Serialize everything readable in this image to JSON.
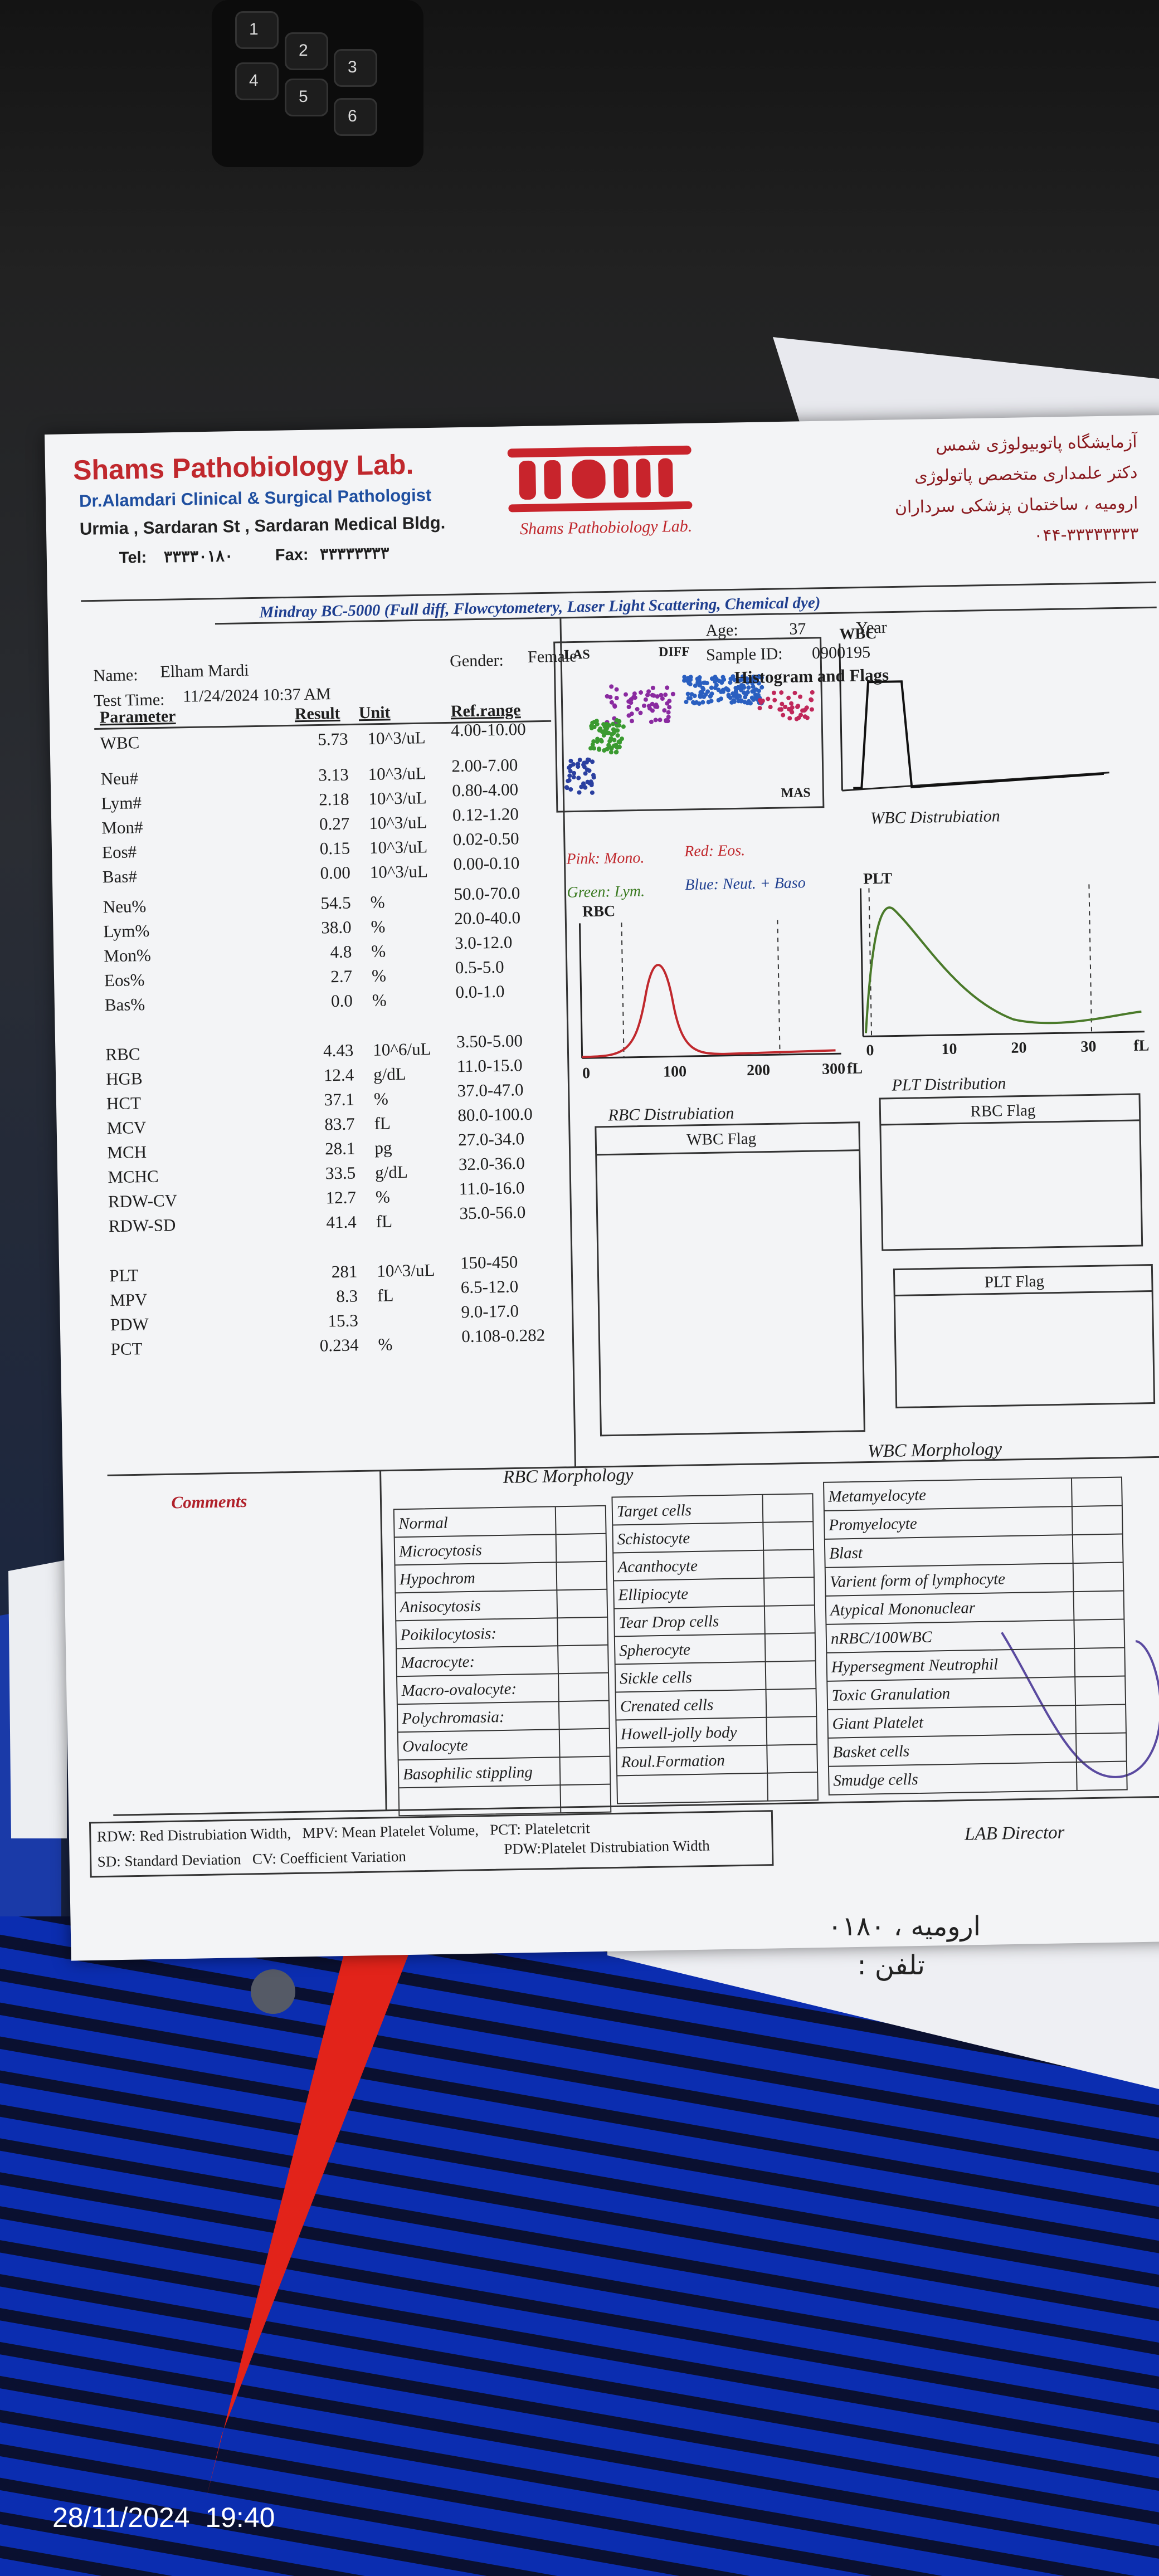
{
  "photo": {
    "keypad": [
      "1",
      "2",
      "3",
      "4",
      "5",
      "6"
    ],
    "timestamp": "28/11/2024  19:40"
  },
  "header": {
    "lab_name": "Shams Pathobiology Lab.",
    "pathologist": "Dr.Alamdari Clinical & Surgical Pathologist",
    "address": "Urmia , Sardaran St , Sardaran Medical Bldg.",
    "tel_label": "Tel:",
    "tel": "۳۳۳۳۰۱۸۰",
    "fax_label": "Fax:",
    "fax": "۳۳۳۳۳۳۳۳",
    "logo_caption": "Shams Pathobiology Lab.",
    "persian_lines": [
      "آزمایشگاه پاتوبیولوژی شمس",
      "دکتر علمداری متخصص پاتولوژی",
      "ارومیه ، ساختمان پزشکی سرداران",
      "۰۴۴-۳۳۳۳۳۳۳۳"
    ]
  },
  "instrument": "Mindray BC-5000 (Full diff, Flowcytometery, Laser Light Scattering, Chemical dye)",
  "patient": {
    "name_label": "Name:",
    "name": "Elham Mardi",
    "gender_label": "Gender:",
    "gender": "Female",
    "age_label": "Age:",
    "age": "37",
    "age_unit": "Year",
    "sample_label": "Sample ID:",
    "sample_id": "0900195",
    "time_label": "Test Time:",
    "test_time": "11/24/2024 10:37 AM"
  },
  "table": {
    "columns": [
      "Parameter",
      "Result",
      "Unit",
      "Ref.range"
    ],
    "rows": [
      {
        "parameter": "WBC",
        "result": "5.73",
        "unit": "10^3/uL",
        "ref_range": "4.00-10.00"
      },
      {
        "parameter": "Neu#",
        "result": "3.13",
        "unit": "10^3/uL",
        "ref_range": "2.00-7.00"
      },
      {
        "parameter": "Lym#",
        "result": "2.18",
        "unit": "10^3/uL",
        "ref_range": "0.80-4.00"
      },
      {
        "parameter": "Mon#",
        "result": "0.27",
        "unit": "10^3/uL",
        "ref_range": "0.12-1.20"
      },
      {
        "parameter": "Eos#",
        "result": "0.15",
        "unit": "10^3/uL",
        "ref_range": "0.02-0.50"
      },
      {
        "parameter": "Bas#",
        "result": "0.00",
        "unit": "10^3/uL",
        "ref_range": "0.00-0.10"
      },
      {
        "parameter": "Neu%",
        "result": "54.5",
        "unit": "%",
        "ref_range": "50.0-70.0"
      },
      {
        "parameter": "Lym%",
        "result": "38.0",
        "unit": "%",
        "ref_range": "20.0-40.0"
      },
      {
        "parameter": "Mon%",
        "result": "4.8",
        "unit": "%",
        "ref_range": "3.0-12.0"
      },
      {
        "parameter": "Eos%",
        "result": "2.7",
        "unit": "%",
        "ref_range": "0.5-5.0"
      },
      {
        "parameter": "Bas%",
        "result": "0.0",
        "unit": "%",
        "ref_range": "0.0-1.0"
      },
      {
        "parameter": "RBC",
        "result": "4.43",
        "unit": "10^6/uL",
        "ref_range": "3.50-5.00"
      },
      {
        "parameter": "HGB",
        "result": "12.4",
        "unit": "g/dL",
        "ref_range": "11.0-15.0"
      },
      {
        "parameter": "HCT",
        "result": "37.1",
        "unit": "%",
        "ref_range": "37.0-47.0"
      },
      {
        "parameter": "MCV",
        "result": "83.7",
        "unit": "fL",
        "ref_range": "80.0-100.0"
      },
      {
        "parameter": "MCH",
        "result": "28.1",
        "unit": "pg",
        "ref_range": "27.0-34.0"
      },
      {
        "parameter": "MCHC",
        "result": "33.5",
        "unit": "g/dL",
        "ref_range": "32.0-36.0"
      },
      {
        "parameter": "RDW-CV",
        "result": "12.7",
        "unit": "%",
        "ref_range": "11.0-16.0"
      },
      {
        "parameter": "RDW-SD",
        "result": "41.4",
        "unit": "fL",
        "ref_range": "35.0-56.0"
      },
      {
        "parameter": "PLT",
        "result": "281",
        "unit": "10^3/uL",
        "ref_range": "150-450"
      },
      {
        "parameter": "MPV",
        "result": "8.3",
        "unit": "fL",
        "ref_range": "6.5-12.0"
      },
      {
        "parameter": "PDW",
        "result": "15.3",
        "ref_range": "9.0-17.0"
      },
      {
        "parameter": "PCT",
        "result": "0.234",
        "unit": "%",
        "ref_range": "0.108-0.282"
      }
    ]
  },
  "histograms": {
    "title": "Histogram and Flags",
    "scatter": {
      "las": "LAS",
      "diff": "DIFF",
      "mas": "MAS"
    },
    "legend": {
      "pink": "Pink: Mono.",
      "red": "Red: Eos.",
      "green": "Green: Lym.",
      "blue": "Blue: Neut. + Baso"
    },
    "wbc": {
      "label": "WBC",
      "caption": "WBC Distrubiation"
    },
    "rbc": {
      "label": "RBC",
      "ticks": [
        "0",
        "100",
        "200",
        "300",
        "fL"
      ],
      "caption": "RBC Distrubiation"
    },
    "plt": {
      "label": "PLT",
      "ticks": [
        "0",
        "10",
        "20",
        "30",
        "fL"
      ],
      "caption": "PLT Distribution"
    }
  },
  "flags": {
    "wbc": "WBC Flag",
    "rbc": "RBC Flag",
    "plt": "PLT Flag"
  },
  "morphology": {
    "comments": "Comments",
    "rbc_title": "RBC Morphology",
    "wbc_title": "WBC Morphology",
    "rbc_col1": [
      "Normal",
      "Microcytosis",
      "Hypochrom",
      "Anisocytosis",
      "Poikilocytosis:",
      "Macrocyte:",
      "Macro-ovalocyte:",
      "Polychromasia:",
      "Ovalocyte",
      "Basophilic stippling"
    ],
    "rbc_col2": [
      "Target cells",
      "Schistocyte",
      "Acanthocyte",
      "Ellipiocyte",
      "Tear Drop cells",
      "Spherocyte",
      "Sickle cells",
      "Crenated cells",
      "Howell-jolly body",
      "Roul.Formation"
    ],
    "wbc_col": [
      "Metamyelocyte",
      "Promyelocyte",
      "Blast",
      "Varient form of lymphocyte",
      "Atypical Mononuclear",
      "nRBC/100WBC",
      "Hypersegment Neutrophil",
      "Toxic Granulation",
      "Giant Platelet",
      "Basket cells",
      "Smudge cells"
    ]
  },
  "footer": {
    "line1": "RDW: Red Distrubiation Width,   MPV: Mean Platelet Volume,   PCT: Plateletcrit",
    "line2": "SD: Standard Deviation   CV: Coefficient Variation",
    "pdw": "PDW:Platelet Distrubiation Width",
    "director": "LAB Director"
  },
  "back_sheet": {
    "city_line": "ارومیه ، ۰۱۸۰",
    "phone_label": "تلفن :"
  }
}
